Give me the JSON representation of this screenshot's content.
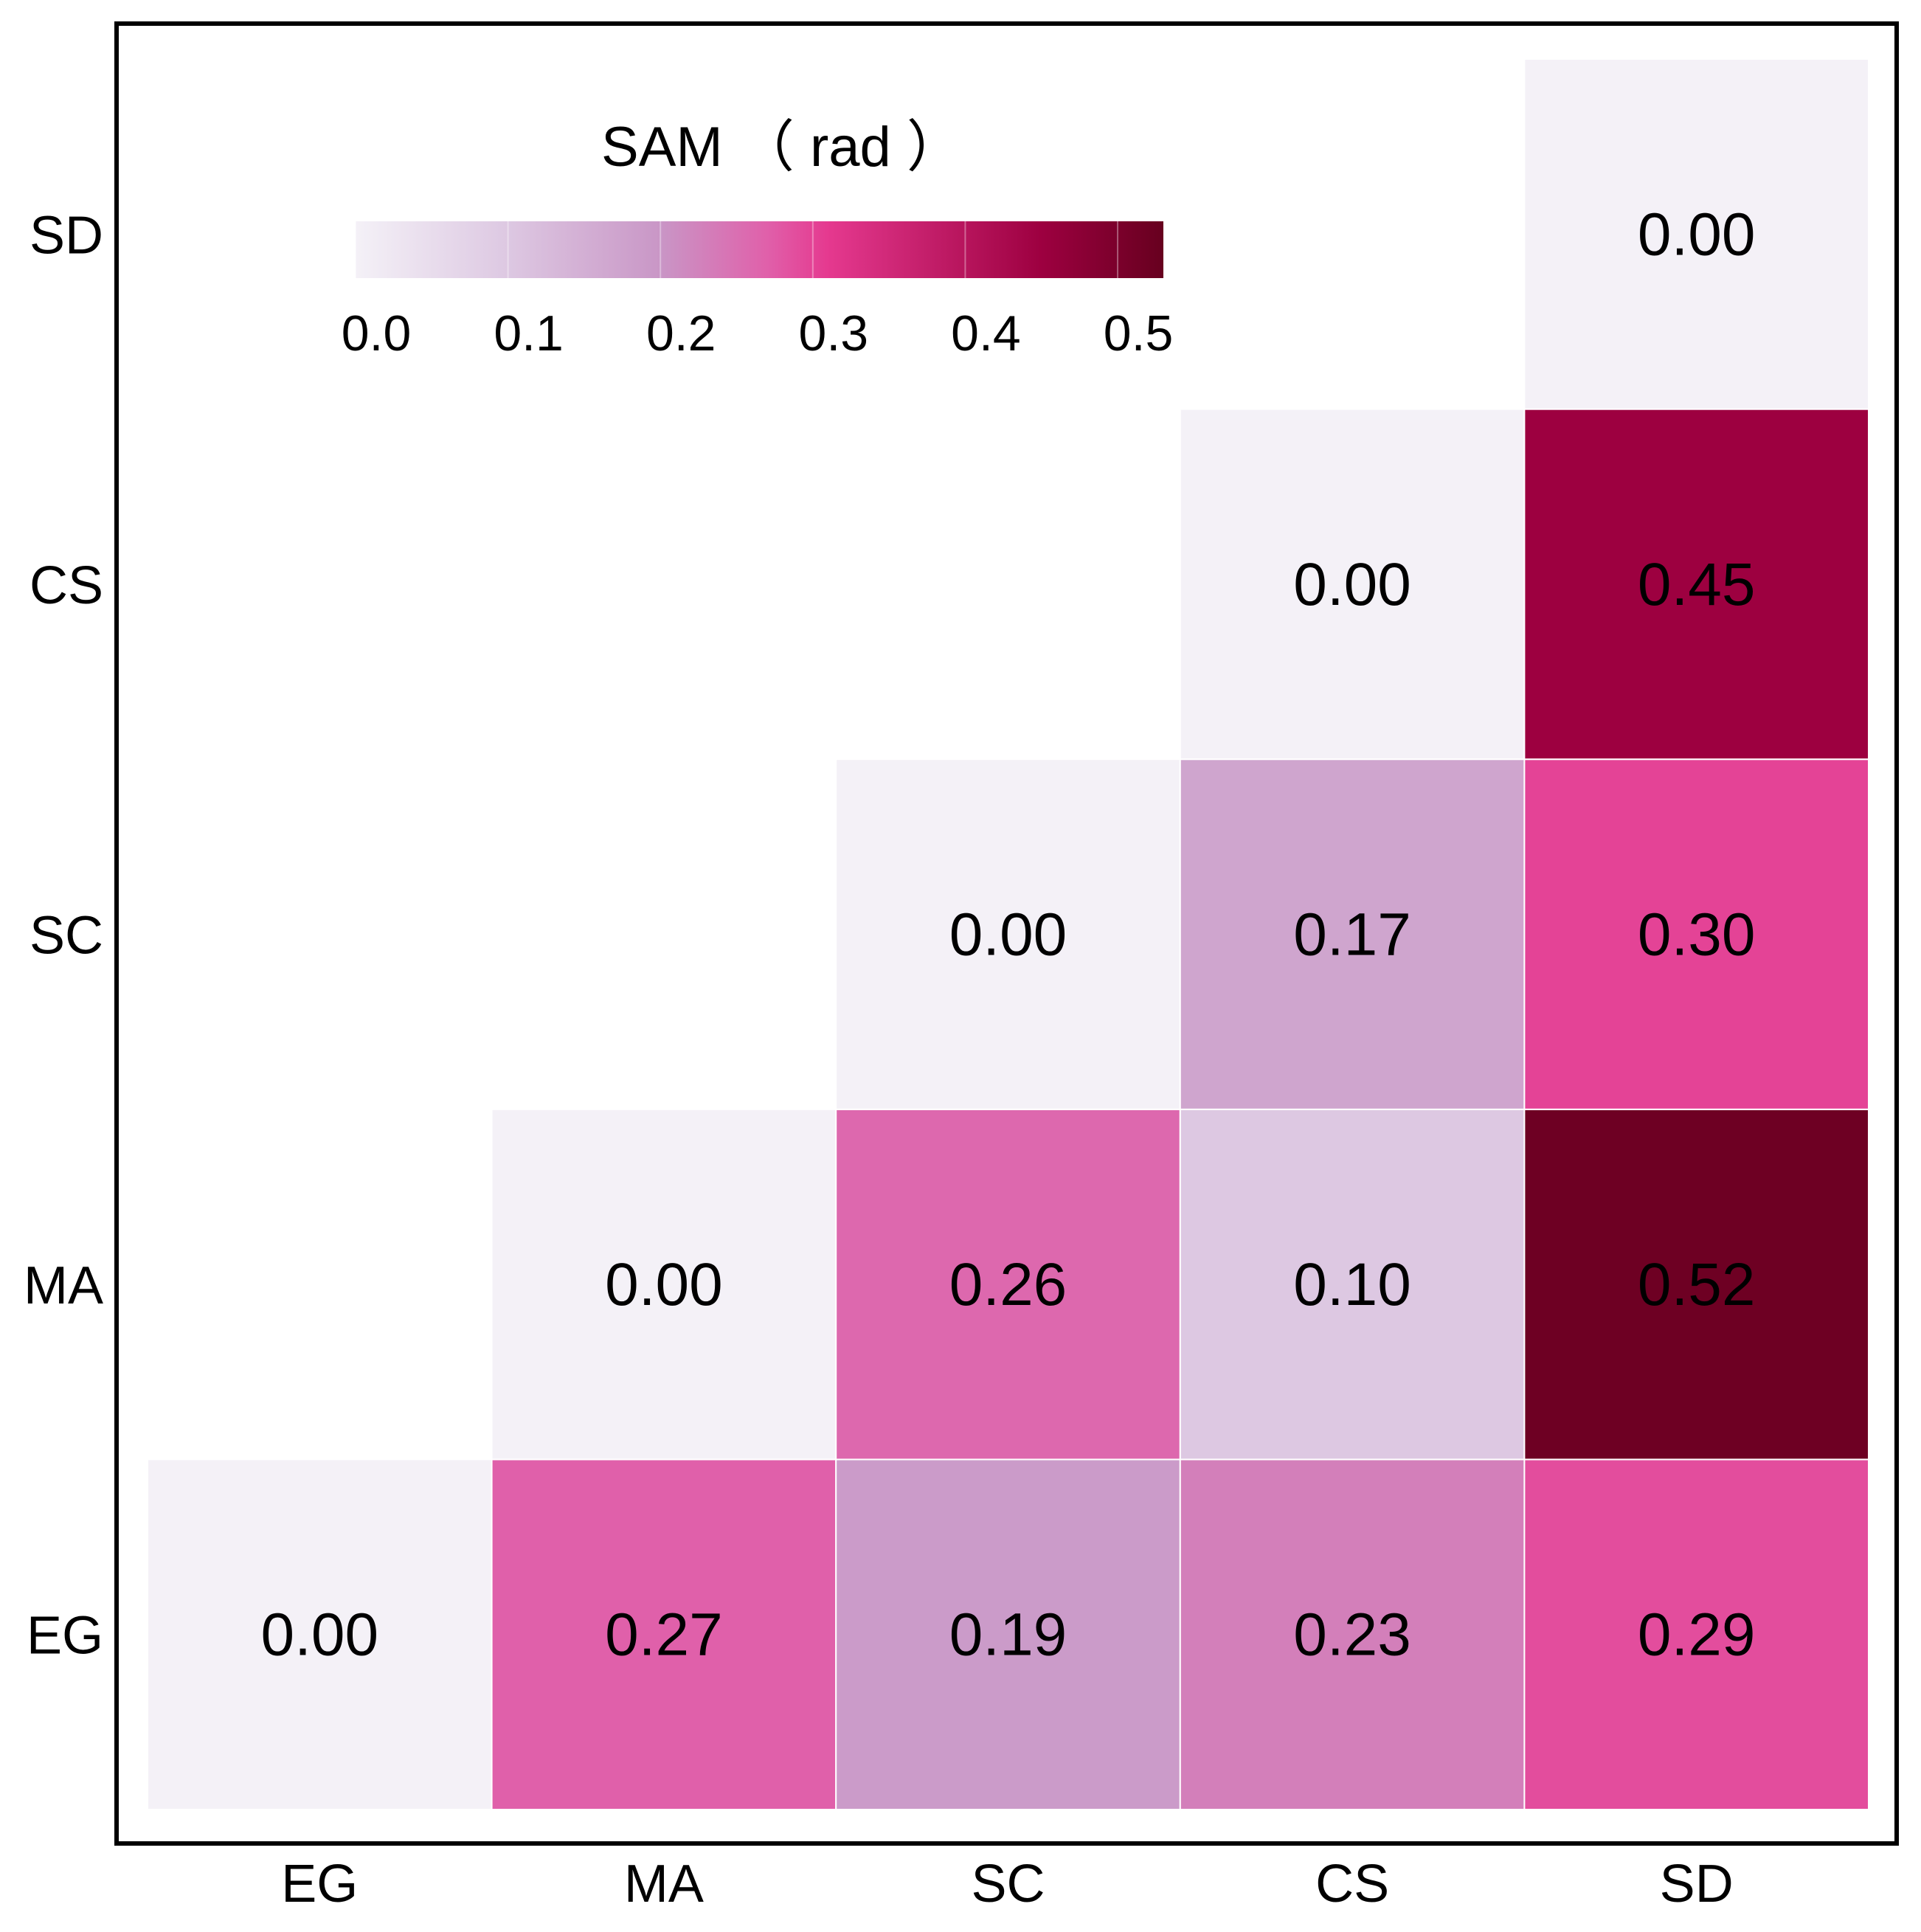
{
  "chart_data": {
    "type": "heatmap",
    "layout": "lower-triangle",
    "title": "",
    "xlabel": "",
    "ylabel": "",
    "x_categories": [
      "EG",
      "MA",
      "SC",
      "CS",
      "SD"
    ],
    "y_categories": [
      "EG",
      "MA",
      "SC",
      "CS",
      "SD"
    ],
    "cells": [
      {
        "x": "EG",
        "y": "EG",
        "value": 0.0,
        "label": "0.00"
      },
      {
        "x": "MA",
        "y": "EG",
        "value": 0.27,
        "label": "0.27"
      },
      {
        "x": "SC",
        "y": "EG",
        "value": 0.19,
        "label": "0.19"
      },
      {
        "x": "CS",
        "y": "EG",
        "value": 0.23,
        "label": "0.23"
      },
      {
        "x": "SD",
        "y": "EG",
        "value": 0.29,
        "label": "0.29"
      },
      {
        "x": "MA",
        "y": "MA",
        "value": 0.0,
        "label": "0.00"
      },
      {
        "x": "SC",
        "y": "MA",
        "value": 0.26,
        "label": "0.26"
      },
      {
        "x": "CS",
        "y": "MA",
        "value": 0.1,
        "label": "0.10"
      },
      {
        "x": "SD",
        "y": "MA",
        "value": 0.52,
        "label": "0.52"
      },
      {
        "x": "SC",
        "y": "SC",
        "value": 0.0,
        "label": "0.00"
      },
      {
        "x": "CS",
        "y": "SC",
        "value": 0.17,
        "label": "0.17"
      },
      {
        "x": "SD",
        "y": "SC",
        "value": 0.3,
        "label": "0.30"
      },
      {
        "x": "CS",
        "y": "CS",
        "value": 0.0,
        "label": "0.00"
      },
      {
        "x": "SD",
        "y": "CS",
        "value": 0.45,
        "label": "0.45"
      },
      {
        "x": "SD",
        "y": "SD",
        "value": 0.0,
        "label": "0.00"
      }
    ],
    "colorbar": {
      "title": "SAM （ rad ）",
      "range": [
        0.0,
        0.53
      ],
      "ticks": [
        0.0,
        0.1,
        0.2,
        0.3,
        0.4,
        0.5
      ],
      "tick_labels": [
        "0.0",
        "0.1",
        "0.2",
        "0.3",
        "0.4",
        "0.5"
      ],
      "orientation": "horizontal",
      "placement": "top-left",
      "stops": [
        {
          "value": 0.0,
          "color": "#f4f1f7"
        },
        {
          "value": 0.1,
          "color": "#ddc8e2"
        },
        {
          "value": 0.2,
          "color": "#c996c6"
        },
        {
          "value": 0.27,
          "color": "#e060aa"
        },
        {
          "value": 0.31,
          "color": "#e5398f"
        },
        {
          "value": 0.45,
          "color": "#9d0040"
        },
        {
          "value": 0.53,
          "color": "#67001f"
        }
      ]
    }
  }
}
